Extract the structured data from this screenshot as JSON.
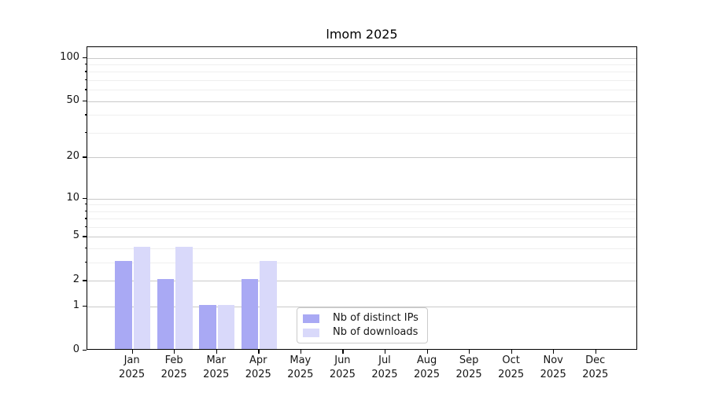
{
  "chart_data": {
    "type": "bar",
    "title": "lmom 2025",
    "x": [
      "Jan 2025",
      "Feb 2025",
      "Mar 2025",
      "Apr 2025",
      "May 2025",
      "Jun 2025",
      "Jul 2025",
      "Aug 2025",
      "Sep 2025",
      "Oct 2025",
      "Nov 2025",
      "Dec 2025"
    ],
    "x_tick_line1": [
      "Jan",
      "Feb",
      "Mar",
      "Apr",
      "May",
      "Jun",
      "Jul",
      "Aug",
      "Sep",
      "Oct",
      "Nov",
      "Dec"
    ],
    "x_tick_line2": "2025",
    "series": [
      {
        "name": "Nb of distinct IPs",
        "color": "#a9a9f4",
        "values": [
          3,
          2,
          1,
          2,
          0,
          0,
          0,
          0,
          0,
          0,
          0,
          0
        ]
      },
      {
        "name": "Nb of downloads",
        "color": "#d9d9fa",
        "values": [
          4,
          4,
          1,
          3,
          0,
          0,
          0,
          0,
          0,
          0,
          0,
          0
        ]
      }
    ],
    "y_axis": {
      "scale": "log1p",
      "major_ticks": [
        0,
        1,
        2,
        5,
        10,
        20,
        50,
        100
      ],
      "minor_gridlines": [
        3,
        4,
        6,
        7,
        8,
        9,
        30,
        40,
        60,
        70,
        80,
        90
      ],
      "range": [
        0,
        118
      ]
    },
    "legend_position": "inside-lower-center",
    "grid": true,
    "colors": {
      "major_grid": "#c9c9c9",
      "minor_grid": "#efefef",
      "spine": "#000000",
      "text": "#151515"
    }
  }
}
